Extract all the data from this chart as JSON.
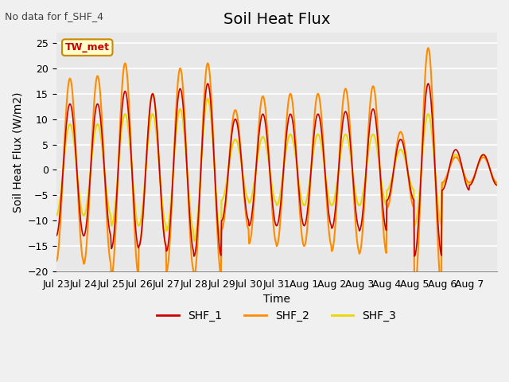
{
  "title": "Soil Heat Flux",
  "xlabel": "Time",
  "ylabel": "Soil Heat Flux (W/m2)",
  "annotation": "No data for f_SHF_4",
  "legend_label": "TW_met",
  "series_labels": [
    "SHF_1",
    "SHF_2",
    "SHF_3"
  ],
  "colors": [
    "#cc0000",
    "#ff8c00",
    "#e8d800"
  ],
  "ylim": [
    -20,
    27
  ],
  "yticks": [
    -20,
    -15,
    -10,
    -5,
    0,
    5,
    10,
    15,
    20,
    25
  ],
  "plot_bg": "#e8e8e8",
  "grid_color": "#ffffff",
  "days_labels": [
    "Jul 23",
    "Jul 24",
    "Jul 25",
    "Jul 26",
    "Jul 27",
    "Jul 28",
    "Jul 29",
    "Jul 30",
    "Jul 31",
    "Aug 1",
    "Aug 2",
    "Aug 3",
    "Aug 4",
    "Aug 5",
    "Aug 6",
    "Aug 7"
  ],
  "n_days": 16,
  "title_fontsize": 14,
  "label_fontsize": 10,
  "tick_fontsize": 9,
  "legend_fontsize": 10,
  "amplitudes1": [
    13,
    13,
    15.5,
    15,
    16,
    17,
    10,
    11,
    11,
    11,
    11.5,
    12,
    6,
    17,
    4,
    3
  ],
  "amplitudes2": [
    18,
    18.5,
    21,
    15,
    20,
    21,
    11.8,
    14.5,
    15,
    15,
    16,
    16.5,
    7.5,
    24,
    2.5,
    2.5
  ],
  "amplitudes3": [
    9,
    9,
    11,
    11,
    12,
    14,
    6,
    6.5,
    7,
    7,
    7,
    7,
    4,
    11,
    3,
    3
  ]
}
